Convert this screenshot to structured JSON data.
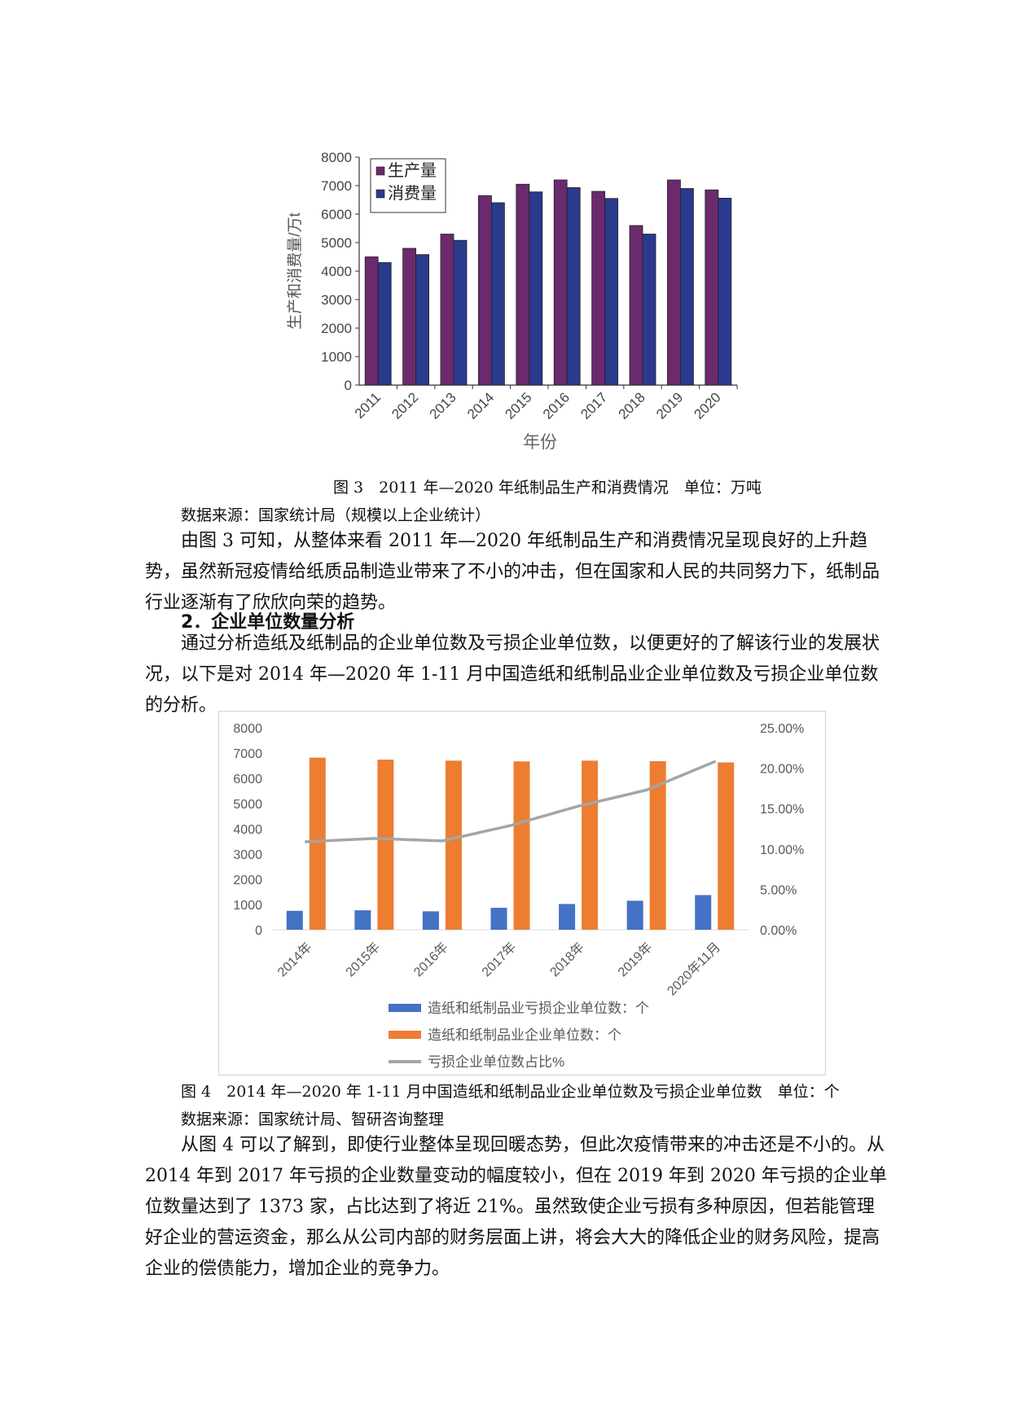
{
  "figure3": {
    "caption": "图 3　2011 年—2020 年纸制品生产和消费情况　单位：万吨",
    "source": "数据来源：国家统计局（规模以上企业统计）",
    "chart_data": {
      "type": "bar",
      "categories": [
        "2011",
        "2012",
        "2013",
        "2014",
        "2015",
        "2016",
        "2017",
        "2018",
        "2019",
        "2020"
      ],
      "series": [
        {
          "name": "生产量",
          "values": [
            4500,
            4800,
            5300,
            6650,
            7050,
            7200,
            6800,
            5600,
            7200,
            6850
          ],
          "color": "#6b2a6e"
        },
        {
          "name": "消费量",
          "values": [
            4300,
            4580,
            5080,
            6400,
            6780,
            6930,
            6550,
            5300,
            6900,
            6560
          ],
          "color": "#2a3a8c"
        }
      ],
      "xlabel": "年份",
      "ylabel": "生产和消费量/万t",
      "ylim": [
        0,
        8000
      ],
      "yticks": [
        "0",
        "1000",
        "2000",
        "3000",
        "4000",
        "5000",
        "6000",
        "7000",
        "8000"
      ],
      "legend": "top-left",
      "grid": false
    }
  },
  "text1": {
    "para1": "由图 3 可知，从整体来看 2011 年—2020 年纸制品生产和消费情况呈现良好的上升趋势，虽然新冠疫情给纸质品制造业带来了不小的冲击，但在国家和人民的共同努力下，纸制品行业逐渐有了欣欣向荣的趋势。",
    "heading": "2．企业单位数量分析",
    "para2": "通过分析造纸及纸制品的企业单位数及亏损企业单位数，以便更好的了解该行业的发展状况，以下是对 2014 年—2020 年 1-11 月中国造纸和纸制品业企业单位数及亏损企业单位数的分析。"
  },
  "figure4": {
    "caption": "图 4　2014 年—2020 年 1-11 月中国造纸和纸制品业企业单位数及亏损企业单位数　单位：个",
    "source": "数据来源：国家统计局、智研咨询整理",
    "chart_data": {
      "type": "bar",
      "categories": [
        "2014年",
        "2015年",
        "2016年",
        "2017年",
        "2018年",
        "2019年",
        "2020年11月"
      ],
      "series": [
        {
          "name": "造纸和纸制品业亏损企业单位数：个",
          "values": [
            750,
            770,
            730,
            870,
            1020,
            1150,
            1373
          ],
          "color": "#4472c4",
          "axis": "left"
        },
        {
          "name": "造纸和纸制品业企业单位数：个",
          "values": [
            6820,
            6740,
            6700,
            6670,
            6700,
            6680,
            6630
          ],
          "color": "#ed7d31",
          "axis": "left"
        },
        {
          "name": "亏损企业单位数占比%",
          "type": "line",
          "values": [
            10.9,
            11.3,
            11.0,
            12.9,
            15.3,
            17.3,
            20.8
          ],
          "color": "#a5a5a5",
          "axis": "right"
        }
      ],
      "ylim": [
        0,
        8000
      ],
      "yticks": [
        "0",
        "1000",
        "2000",
        "3000",
        "4000",
        "5000",
        "6000",
        "7000",
        "8000"
      ],
      "y2lim": [
        0,
        25
      ],
      "y2ticks": [
        "0.00%",
        "5.00%",
        "10.00%",
        "15.00%",
        "20.00%",
        "25.00%"
      ],
      "legend": "bottom",
      "grid": false
    }
  },
  "text2": {
    "para3": "从图 4 可以了解到，即使行业整体呈现回暖态势，但此次疫情带来的冲击还是不小的。从 2014 年到 2017 年亏损的企业数量变动的幅度较小，但在 2019 年到 2020 年亏损的企业单位数量达到了 1373 家，占比达到了将近 21%。虽然致使企业亏损有多种原因，但若能管理好企业的营运资金，那么从公司内部的财务层面上讲，将会大大的降低企业的财务风险，提高企业的偿债能力，增加企业的竞争力。"
  }
}
